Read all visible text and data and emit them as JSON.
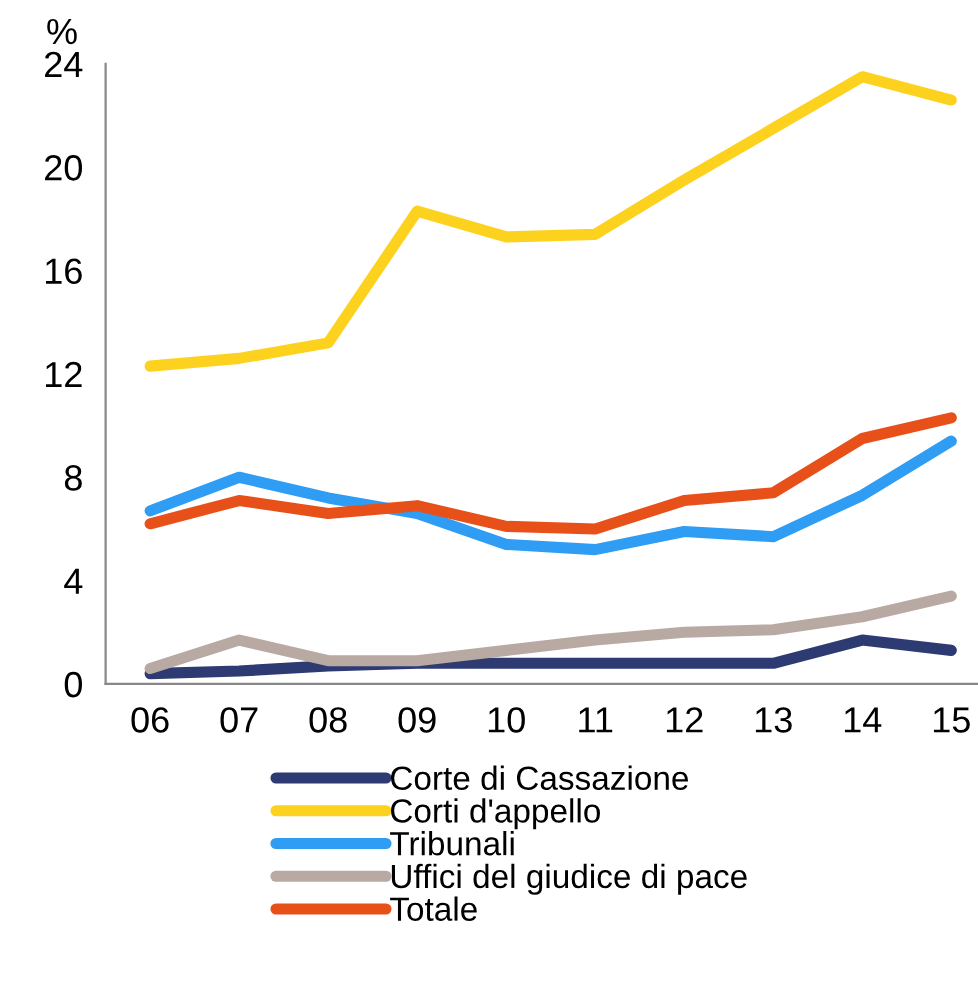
{
  "chart_data": {
    "type": "line",
    "ylabel": "%",
    "categories": [
      "06",
      "07",
      "08",
      "09",
      "10",
      "11",
      "12",
      "13",
      "14",
      "15"
    ],
    "ylim": [
      0,
      24
    ],
    "yticks": [
      0,
      4,
      8,
      12,
      16,
      20,
      24
    ],
    "grid": false,
    "legend": "bottom",
    "marker": "none",
    "line_style": "solid",
    "series": [
      {
        "name": "Corte di Cassazione",
        "color": "#2e3a72",
        "values": [
          0.4,
          0.5,
          0.7,
          0.8,
          0.8,
          0.8,
          0.8,
          0.8,
          1.7,
          1.3
        ]
      },
      {
        "name": "Corti d'appello",
        "color": "#fdd21f",
        "values": [
          12.3,
          12.6,
          13.2,
          18.3,
          17.3,
          17.4,
          19.5,
          21.5,
          23.5,
          22.6
        ]
      },
      {
        "name": "Tribunali",
        "color": "#2f9df4",
        "values": [
          6.7,
          8.0,
          7.2,
          6.6,
          5.4,
          5.2,
          5.9,
          5.7,
          7.3,
          9.4
        ]
      },
      {
        "name": "Uffici del giudice di pace",
        "color": "#b8aaa3",
        "values": [
          0.6,
          1.7,
          0.9,
          0.9,
          1.3,
          1.7,
          2.0,
          2.1,
          2.6,
          3.4
        ]
      },
      {
        "name": "Totale",
        "color": "#e8501a",
        "values": [
          6.2,
          7.1,
          6.6,
          6.9,
          6.1,
          6.0,
          7.1,
          7.4,
          9.5,
          10.3
        ]
      }
    ]
  }
}
